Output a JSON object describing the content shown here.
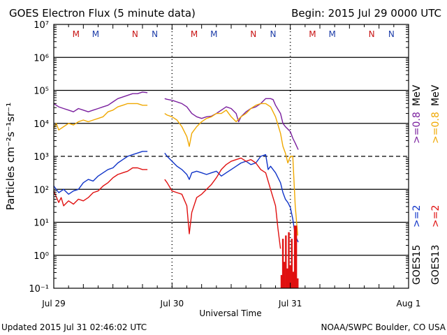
{
  "colors": {
    "goes15_high": "#7a1f9e",
    "goes13_high": "#f0a800",
    "goes15_low": "#1034c8",
    "goes13_low": "#e01010",
    "marker_m": "#c81414",
    "marker_n": "#1c3ca8"
  },
  "chart_data": {
    "type": "line",
    "title": "GOES Electron Flux (5 minute data)",
    "begin": "Begin: 2015 Jul 29 0000 UTC",
    "xlabel": "Universal Time",
    "ylabel": "Particles cm⁻²s⁻¹sr⁻¹",
    "yscale": "log",
    "ylim_exp": [
      -1,
      7
    ],
    "xlim_hours": [
      0,
      72
    ],
    "x_ticks": [
      {
        "hour": 0,
        "label": "Jul 29"
      },
      {
        "hour": 24,
        "label": "Jul 30"
      },
      {
        "hour": 48,
        "label": "Jul 31"
      },
      {
        "hour": 72,
        "label": "Aug 1"
      }
    ],
    "y_ticks": [
      {
        "exp": -1,
        "label": "10⁻¹"
      },
      {
        "exp": 0,
        "label": "10⁰"
      },
      {
        "exp": 1,
        "label": "10¹"
      },
      {
        "exp": 2,
        "label": "10²"
      },
      {
        "exp": 3,
        "label": "10³"
      },
      {
        "exp": 4,
        "label": "10⁴"
      },
      {
        "exp": 5,
        "label": "10⁵"
      },
      {
        "exp": 6,
        "label": "10⁶"
      },
      {
        "exp": 7,
        "label": "10⁷"
      }
    ],
    "dashed_gridline_exp": 3,
    "markers": [
      {
        "hour": 4.5,
        "label": "M",
        "color_key": "marker_m"
      },
      {
        "hour": 8.5,
        "label": "M",
        "color_key": "marker_n"
      },
      {
        "hour": 16.5,
        "label": "N",
        "color_key": "marker_m"
      },
      {
        "hour": 20.5,
        "label": "N",
        "color_key": "marker_n"
      },
      {
        "hour": 28.5,
        "label": "M",
        "color_key": "marker_m"
      },
      {
        "hour": 32.5,
        "label": "M",
        "color_key": "marker_n"
      },
      {
        "hour": 40.5,
        "label": "N",
        "color_key": "marker_m"
      },
      {
        "hour": 44.5,
        "label": "N",
        "color_key": "marker_n"
      },
      {
        "hour": 52.5,
        "label": "M",
        "color_key": "marker_m"
      },
      {
        "hour": 56.5,
        "label": "M",
        "color_key": "marker_n"
      },
      {
        "hour": 64.5,
        "label": "N",
        "color_key": "marker_m"
      },
      {
        "hour": 68.5,
        "label": "N",
        "color_key": "marker_n"
      }
    ],
    "day_separators_hours": [
      24,
      48
    ],
    "series": [
      {
        "name": "GOES15 >=0.8 MeV",
        "color_key": "goes15_high",
        "segments": [
          [
            [
              0,
              4.6
            ],
            [
              1,
              4.5
            ],
            [
              2,
              4.45
            ],
            [
              3,
              4.4
            ],
            [
              4,
              4.35
            ],
            [
              5,
              4.45
            ],
            [
              6,
              4.4
            ],
            [
              7,
              4.35
            ],
            [
              8,
              4.4
            ],
            [
              9,
              4.45
            ],
            [
              10,
              4.5
            ],
            [
              11,
              4.55
            ],
            [
              12,
              4.65
            ],
            [
              13,
              4.75
            ],
            [
              14,
              4.8
            ],
            [
              15,
              4.85
            ],
            [
              16,
              4.9
            ],
            [
              17,
              4.9
            ],
            [
              18,
              4.95
            ],
            [
              19,
              4.93
            ]
          ],
          [
            [
              22.5,
              4.75
            ],
            [
              23,
              4.73
            ],
            [
              24,
              4.7
            ],
            [
              25,
              4.65
            ],
            [
              26,
              4.6
            ],
            [
              27,
              4.5
            ],
            [
              28,
              4.3
            ],
            [
              29,
              4.2
            ],
            [
              30,
              4.15
            ],
            [
              31,
              4.2
            ],
            [
              32,
              4.22
            ],
            [
              33,
              4.3
            ],
            [
              34,
              4.4
            ],
            [
              35,
              4.5
            ],
            [
              36,
              4.45
            ],
            [
              37,
              4.3
            ],
            [
              37.5,
              4.05
            ],
            [
              38,
              4.2
            ],
            [
              39,
              4.35
            ],
            [
              40,
              4.45
            ],
            [
              41,
              4.5
            ],
            [
              42,
              4.6
            ],
            [
              43,
              4.75
            ],
            [
              44,
              4.75
            ],
            [
              44.5,
              4.72
            ],
            [
              45,
              4.55
            ],
            [
              46,
              4.3
            ],
            [
              46.5,
              4.0
            ],
            [
              47,
              3.9
            ],
            [
              48,
              3.75
            ],
            [
              48.5,
              3.55
            ],
            [
              49,
              3.4
            ],
            [
              49.6,
              3.2
            ]
          ]
        ]
      },
      {
        "name": "GOES13 >=0.8 MeV",
        "color_key": "goes13_high",
        "segments": [
          [
            [
              0,
              3.85
            ],
            [
              0.5,
              4.0
            ],
            [
              1,
              3.8
            ],
            [
              2,
              3.9
            ],
            [
              3,
              4.0
            ],
            [
              4,
              3.95
            ],
            [
              5,
              4.05
            ],
            [
              6,
              4.1
            ],
            [
              7,
              4.05
            ],
            [
              8,
              4.1
            ],
            [
              9,
              4.15
            ],
            [
              10,
              4.2
            ],
            [
              11,
              4.35
            ],
            [
              12,
              4.4
            ],
            [
              13,
              4.5
            ],
            [
              14,
              4.55
            ],
            [
              15,
              4.6
            ],
            [
              16,
              4.6
            ],
            [
              17,
              4.6
            ],
            [
              18,
              4.55
            ],
            [
              19,
              4.55
            ]
          ],
          [
            [
              22.5,
              4.3
            ],
            [
              23,
              4.25
            ],
            [
              24,
              4.2
            ],
            [
              25,
              4.1
            ],
            [
              26,
              3.9
            ],
            [
              27,
              3.6
            ],
            [
              27.5,
              3.3
            ],
            [
              28,
              3.7
            ],
            [
              29,
              3.9
            ],
            [
              30,
              4.05
            ],
            [
              31,
              4.15
            ],
            [
              32,
              4.2
            ],
            [
              33,
              4.3
            ],
            [
              34,
              4.3
            ],
            [
              35,
              4.4
            ],
            [
              36,
              4.2
            ],
            [
              37,
              4.05
            ],
            [
              38,
              4.2
            ],
            [
              39,
              4.3
            ],
            [
              40,
              4.45
            ],
            [
              41,
              4.55
            ],
            [
              42,
              4.6
            ],
            [
              43,
              4.6
            ],
            [
              44,
              4.5
            ],
            [
              45,
              4.2
            ],
            [
              46,
              3.7
            ],
            [
              46.5,
              3.3
            ],
            [
              47,
              3.1
            ],
            [
              47.5,
              2.8
            ],
            [
              48,
              3.0
            ],
            [
              48.5,
              3.0
            ],
            [
              49,
              1.5
            ],
            [
              49.5,
              0.6
            ]
          ]
        ]
      },
      {
        "name": "GOES15 >=2 MeV",
        "color_key": "goes15_low",
        "segments": [
          [
            [
              0,
              2.1
            ],
            [
              1,
              1.9
            ],
            [
              2,
              2.0
            ],
            [
              3,
              1.85
            ],
            [
              4,
              1.95
            ],
            [
              5,
              2.0
            ],
            [
              6,
              2.2
            ],
            [
              7,
              2.3
            ],
            [
              8,
              2.25
            ],
            [
              9,
              2.4
            ],
            [
              10,
              2.5
            ],
            [
              11,
              2.6
            ],
            [
              12,
              2.65
            ],
            [
              13,
              2.8
            ],
            [
              14,
              2.9
            ],
            [
              15,
              3.0
            ],
            [
              16,
              3.05
            ],
            [
              17,
              3.1
            ],
            [
              18,
              3.15
            ],
            [
              19,
              3.15
            ]
          ],
          [
            [
              22.5,
              3.1
            ],
            [
              23,
              3.0
            ],
            [
              24,
              2.85
            ],
            [
              25,
              2.7
            ],
            [
              26,
              2.6
            ],
            [
              27,
              2.45
            ],
            [
              27.5,
              2.3
            ],
            [
              28,
              2.5
            ],
            [
              29,
              2.55
            ],
            [
              30,
              2.5
            ],
            [
              31,
              2.45
            ],
            [
              32,
              2.5
            ],
            [
              33,
              2.55
            ],
            [
              34,
              2.4
            ],
            [
              35,
              2.5
            ],
            [
              36,
              2.6
            ],
            [
              37,
              2.7
            ],
            [
              38,
              2.8
            ],
            [
              39,
              2.85
            ],
            [
              40,
              2.75
            ],
            [
              41,
              2.8
            ],
            [
              42,
              3.0
            ],
            [
              43,
              3.05
            ],
            [
              43.5,
              2.6
            ],
            [
              44,
              2.7
            ],
            [
              45,
              2.5
            ],
            [
              46,
              2.2
            ],
            [
              46.5,
              1.9
            ],
            [
              47,
              1.7
            ],
            [
              47.5,
              1.6
            ],
            [
              48,
              1.45
            ],
            [
              48.5,
              1.1
            ],
            [
              49,
              0.6
            ],
            [
              49.6,
              0.4
            ]
          ]
        ]
      },
      {
        "name": "GOES13 >=2 MeV",
        "color_key": "goes13_low",
        "segments": [
          [
            [
              0,
              1.95
            ],
            [
              1,
              1.6
            ],
            [
              1.5,
              1.75
            ],
            [
              2,
              1.5
            ],
            [
              3,
              1.65
            ],
            [
              4,
              1.55
            ],
            [
              5,
              1.7
            ],
            [
              6,
              1.65
            ],
            [
              7,
              1.75
            ],
            [
              8,
              1.9
            ],
            [
              9,
              1.95
            ],
            [
              10,
              2.1
            ],
            [
              11,
              2.2
            ],
            [
              12,
              2.35
            ],
            [
              13,
              2.45
            ],
            [
              14,
              2.5
            ],
            [
              15,
              2.55
            ],
            [
              16,
              2.65
            ],
            [
              17,
              2.65
            ],
            [
              18,
              2.6
            ],
            [
              19,
              2.6
            ]
          ],
          [
            [
              22.5,
              2.3
            ],
            [
              23,
              2.2
            ],
            [
              24,
              1.95
            ],
            [
              25,
              1.9
            ],
            [
              26,
              1.85
            ],
            [
              27,
              1.5
            ],
            [
              27.5,
              0.65
            ],
            [
              28,
              1.3
            ],
            [
              29,
              1.75
            ],
            [
              30,
              1.85
            ],
            [
              31,
              2.0
            ],
            [
              32,
              2.15
            ],
            [
              33,
              2.35
            ],
            [
              34,
              2.6
            ],
            [
              35,
              2.75
            ],
            [
              36,
              2.85
            ],
            [
              37,
              2.9
            ],
            [
              38,
              2.95
            ],
            [
              39,
              2.85
            ],
            [
              40,
              2.9
            ],
            [
              41,
              2.8
            ],
            [
              42,
              2.6
            ],
            [
              43,
              2.5
            ],
            [
              44,
              2.0
            ],
            [
              45,
              1.5
            ],
            [
              45.5,
              0.8
            ],
            [
              46,
              0.2
            ]
          ]
        ]
      }
    ],
    "spikes_goes13_low": {
      "hours": [
        46.2,
        46.5,
        46.8,
        47.1,
        47.4,
        47.7,
        48.0,
        48.3,
        48.6,
        48.9,
        49.2,
        49.5
      ],
      "exps": [
        -0.6,
        0.5,
        -0.2,
        0.6,
        -0.4,
        0.7,
        -0.3,
        0.5,
        -0.5,
        0.9,
        0.9,
        -0.7
      ]
    },
    "legend": [
      {
        "label": ">=2",
        "color_key": "goes15_low"
      },
      {
        "label": ">=2",
        "color_key": "goes13_low"
      },
      {
        "label": ">=0.8",
        "color_key": "goes15_high"
      },
      {
        "label": ">=0.8",
        "color_key": "goes13_high"
      }
    ],
    "legend_unit": "MeV",
    "satellites": [
      "GOES15",
      "GOES13"
    ]
  },
  "footer": {
    "updated": "Updated 2015 Jul 31 02:46:02 UTC",
    "credit": "NOAA/SWPC Boulder, CO USA"
  }
}
